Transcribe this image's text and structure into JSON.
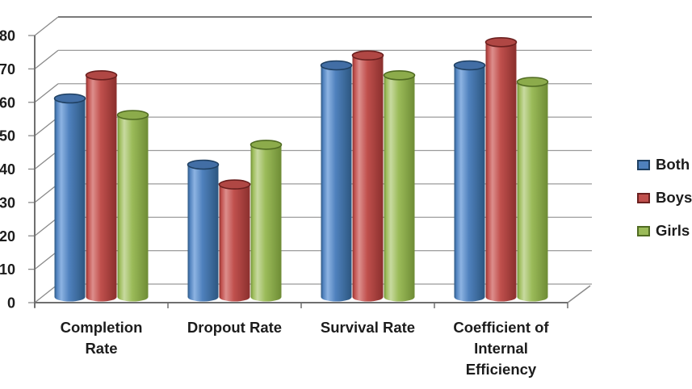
{
  "chart_data": {
    "type": "bar",
    "style": "3d-cylinder-column",
    "title": "",
    "categories": [
      "Completion Rate",
      "Dropout Rate",
      "Survival Rate",
      "Coefficient of Internal Efficiency"
    ],
    "category_label_lines": [
      [
        "Completion",
        "Rate"
      ],
      [
        "Dropout Rate"
      ],
      [
        "Survival Rate"
      ],
      [
        "Coefficient of",
        "Internal",
        "Efficiency"
      ]
    ],
    "series": [
      {
        "name": "Both",
        "color": "#4f81bd",
        "color_light": "#8db3e2",
        "color_dark": "#2c567f",
        "color_rim": "#1f4062",
        "color_top": "#426ea5",
        "values": [
          60,
          40,
          70,
          70
        ]
      },
      {
        "name": "Boys",
        "color": "#c0504d",
        "color_light": "#dd8e8c",
        "color_dark": "#8a2f2d",
        "color_rim": "#6b201f",
        "color_top": "#b04744",
        "values": [
          67,
          34,
          73,
          77
        ]
      },
      {
        "name": "Girls",
        "color": "#9bbb59",
        "color_light": "#c8daa0",
        "color_dark": "#6e8c35",
        "color_rim": "#506b22",
        "color_top": "#8cab4b",
        "values": [
          55,
          46,
          67,
          65
        ]
      }
    ],
    "xlabel": "",
    "ylabel": "",
    "ylim": [
      0,
      80
    ],
    "ytick_step": 10,
    "ytick_labels": [
      "0",
      "10",
      "20",
      "30",
      "40",
      "50",
      "60",
      "70",
      "80"
    ],
    "grid": true,
    "legend_position": "right"
  },
  "colors": {
    "background": "#ffffff",
    "gridline": "#9b9b9b",
    "wall_top_line": "#7a7a7a",
    "axis": "#6f6f6f",
    "tick": "#8a8a8a",
    "text": "#1c1c1c"
  }
}
